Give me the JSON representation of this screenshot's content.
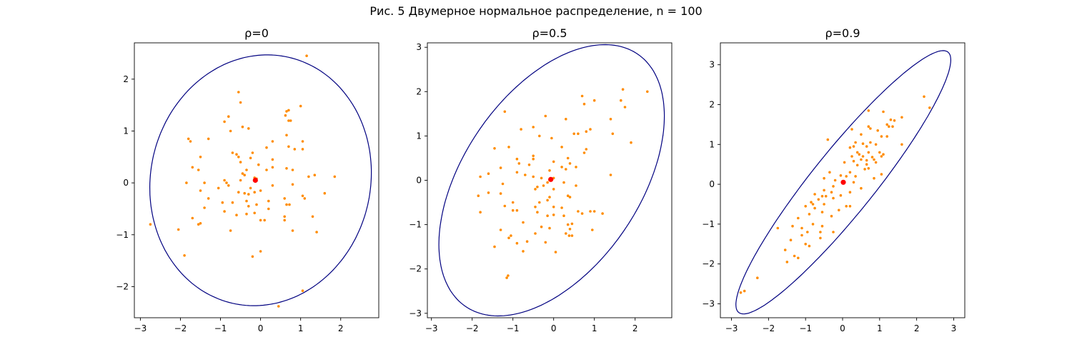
{
  "figure": {
    "suptitle": "Рис. 5 Двумерное нормальное распределение, n = 100"
  },
  "colors": {
    "points": "#ff8c00",
    "mean": "#ff0000",
    "ellipse": "#000080",
    "axes": "#000000"
  },
  "chart_data": [
    {
      "type": "scatter",
      "title": "ρ=0",
      "xlim": [
        -3.15,
        2.95
      ],
      "ylim": [
        -2.6,
        2.7
      ],
      "xticks": [
        -3,
        -2,
        -1,
        0,
        1,
        2
      ],
      "yticks": [
        -2,
        -1,
        0,
        1,
        2
      ],
      "xticklabels": [
        "−3",
        "−2",
        "−1",
        "0",
        "1",
        "2"
      ],
      "yticklabels": [
        "−2",
        "−1",
        "0",
        "1",
        "2"
      ],
      "mean": [
        -0.13,
        0.05
      ],
      "ellipse": {
        "cx": 0.0,
        "cy": 0.05,
        "rx": 2.78,
        "ry": 2.4,
        "angle": 12
      },
      "points": [
        [
          1.15,
          2.45
        ],
        [
          -0.55,
          1.75
        ],
        [
          -0.5,
          1.55
        ],
        [
          1.0,
          1.48
        ],
        [
          0.65,
          1.38
        ],
        [
          0.7,
          1.4
        ],
        [
          0.62,
          1.3
        ],
        [
          -0.8,
          1.28
        ],
        [
          0.7,
          1.2
        ],
        [
          0.75,
          1.2
        ],
        [
          -0.9,
          1.18
        ],
        [
          -0.45,
          1.08
        ],
        [
          -0.3,
          1.05
        ],
        [
          -0.75,
          1.0
        ],
        [
          0.65,
          0.92
        ],
        [
          -1.8,
          0.85
        ],
        [
          -1.75,
          0.8
        ],
        [
          -1.3,
          0.85
        ],
        [
          1.05,
          0.8
        ],
        [
          0.3,
          0.8
        ],
        [
          0.7,
          0.7
        ],
        [
          0.85,
          0.65
        ],
        [
          1.05,
          0.65
        ],
        [
          0.15,
          0.68
        ],
        [
          -0.7,
          0.58
        ],
        [
          -0.6,
          0.55
        ],
        [
          -0.2,
          0.58
        ],
        [
          -0.55,
          0.5
        ],
        [
          -0.5,
          0.4
        ],
        [
          -1.5,
          0.5
        ],
        [
          -0.25,
          0.48
        ],
        [
          0.3,
          0.45
        ],
        [
          -1.7,
          0.3
        ],
        [
          -1.55,
          0.25
        ],
        [
          -0.05,
          0.35
        ],
        [
          0.3,
          0.3
        ],
        [
          -0.35,
          0.25
        ],
        [
          0.65,
          0.28
        ],
        [
          0.8,
          0.25
        ],
        [
          0.15,
          0.25
        ],
        [
          -0.45,
          0.18
        ],
        [
          -0.4,
          0.15
        ],
        [
          1.35,
          0.15
        ],
        [
          1.2,
          0.12
        ],
        [
          1.85,
          0.12
        ],
        [
          -0.15,
          0.1
        ],
        [
          -0.1,
          0.08
        ],
        [
          -0.5,
          0.05
        ],
        [
          -0.9,
          0.05
        ],
        [
          -0.85,
          0.0
        ],
        [
          -1.85,
          0.0
        ],
        [
          -1.4,
          0.0
        ],
        [
          -0.8,
          -0.05
        ],
        [
          0.3,
          -0.05
        ],
        [
          0.8,
          -0.03
        ],
        [
          -0.25,
          -0.1
        ],
        [
          -1.05,
          -0.1
        ],
        [
          -1.5,
          -0.15
        ],
        [
          0.0,
          -0.15
        ],
        [
          -0.15,
          -0.18
        ],
        [
          -0.55,
          -0.18
        ],
        [
          -0.3,
          -0.22
        ],
        [
          1.6,
          -0.2
        ],
        [
          1.05,
          -0.25
        ],
        [
          1.1,
          -0.3
        ],
        [
          0.6,
          -0.3
        ],
        [
          -1.3,
          -0.3
        ],
        [
          -0.35,
          -0.35
        ],
        [
          0.2,
          -0.35
        ],
        [
          -0.7,
          -0.38
        ],
        [
          -0.95,
          -0.38
        ],
        [
          -0.1,
          -0.42
        ],
        [
          0.65,
          -0.42
        ],
        [
          0.72,
          -0.42
        ],
        [
          -0.3,
          -0.45
        ],
        [
          -1.4,
          -0.48
        ],
        [
          0.2,
          -0.5
        ],
        [
          -0.9,
          -0.55
        ],
        [
          -0.15,
          -0.58
        ],
        [
          -0.6,
          -0.62
        ],
        [
          -0.35,
          -0.6
        ],
        [
          0.6,
          -0.65
        ],
        [
          1.3,
          -0.65
        ],
        [
          -1.7,
          -0.68
        ],
        [
          0.0,
          -0.72
        ],
        [
          0.1,
          -0.72
        ],
        [
          0.6,
          -0.72
        ],
        [
          -1.5,
          -0.78
        ],
        [
          -1.55,
          -0.8
        ],
        [
          -2.75,
          -0.8
        ],
        [
          -0.75,
          -0.92
        ],
        [
          -2.05,
          -0.9
        ],
        [
          1.4,
          -0.95
        ],
        [
          0.8,
          -0.92
        ],
        [
          -0.2,
          -1.42
        ],
        [
          0.0,
          -1.32
        ],
        [
          -1.9,
          -1.4
        ],
        [
          1.05,
          -2.08
        ],
        [
          0.45,
          -2.38
        ],
        [
          -0.4,
          -0.2
        ]
      ]
    },
    {
      "type": "scatter",
      "title": "ρ=0.5",
      "xlim": [
        -3.1,
        2.9
      ],
      "ylim": [
        -3.1,
        3.1
      ],
      "xticks": [
        -3,
        -2,
        -1,
        0,
        1,
        2
      ],
      "yticks": [
        -3,
        -2,
        -1,
        0,
        1,
        2,
        3
      ],
      "xticklabels": [
        "−3",
        "−2",
        "−1",
        "0",
        "1",
        "2"
      ],
      "yticklabels": [
        "−3",
        "−2",
        "−1",
        "0",
        "1",
        "2",
        "3"
      ],
      "mean": [
        -0.07,
        0.02
      ],
      "ellipse": {
        "cx": -0.05,
        "cy": 0.0,
        "rx": 3.55,
        "ry": 2.1,
        "angle": 51
      },
      "points": [
        [
          2.3,
          2.0
        ],
        [
          1.7,
          2.05
        ],
        [
          1.75,
          1.65
        ],
        [
          0.7,
          1.9
        ],
        [
          1.0,
          1.8
        ],
        [
          1.65,
          1.8
        ],
        [
          0.75,
          1.72
        ],
        [
          -1.2,
          1.55
        ],
        [
          -0.2,
          1.45
        ],
        [
          0.3,
          1.38
        ],
        [
          1.4,
          1.38
        ],
        [
          -0.5,
          1.2
        ],
        [
          -0.8,
          1.15
        ],
        [
          0.9,
          1.15
        ],
        [
          0.8,
          1.1
        ],
        [
          0.5,
          1.05
        ],
        [
          0.6,
          1.05
        ],
        [
          1.45,
          1.05
        ],
        [
          -0.35,
          1.0
        ],
        [
          -0.05,
          0.95
        ],
        [
          1.9,
          0.85
        ],
        [
          -1.45,
          0.72
        ],
        [
          -1.1,
          0.75
        ],
        [
          0.2,
          0.75
        ],
        [
          0.8,
          0.7
        ],
        [
          0.75,
          0.62
        ],
        [
          -0.5,
          0.55
        ],
        [
          -0.9,
          0.48
        ],
        [
          -0.5,
          0.48
        ],
        [
          0.35,
          0.5
        ],
        [
          0.4,
          0.38
        ],
        [
          0.0,
          0.42
        ],
        [
          -0.85,
          0.38
        ],
        [
          -0.6,
          0.35
        ],
        [
          -1.3,
          0.28
        ],
        [
          -0.1,
          0.22
        ],
        [
          0.2,
          0.3
        ],
        [
          0.55,
          0.3
        ],
        [
          0.3,
          0.25
        ],
        [
          -0.9,
          0.18
        ],
        [
          -0.7,
          0.12
        ],
        [
          -1.6,
          0.15
        ],
        [
          -1.8,
          0.08
        ],
        [
          -0.5,
          0.08
        ],
        [
          0.0,
          0.05
        ],
        [
          -0.3,
          0.05
        ],
        [
          1.4,
          0.12
        ],
        [
          -0.1,
          0.0
        ],
        [
          -0.15,
          -0.05
        ],
        [
          0.25,
          -0.05
        ],
        [
          -1.25,
          -0.08
        ],
        [
          -0.4,
          -0.15
        ],
        [
          -0.45,
          -0.2
        ],
        [
          -0.25,
          -0.12
        ],
        [
          0.0,
          -0.2
        ],
        [
          0.55,
          -0.12
        ],
        [
          -1.6,
          -0.28
        ],
        [
          -1.3,
          -0.3
        ],
        [
          -1.85,
          -0.35
        ],
        [
          0.35,
          -0.35
        ],
        [
          0.4,
          -0.38
        ],
        [
          -0.1,
          -0.38
        ],
        [
          -0.15,
          -0.45
        ],
        [
          -0.35,
          -0.5
        ],
        [
          -1.0,
          -0.5
        ],
        [
          -1.2,
          -0.58
        ],
        [
          -0.45,
          -0.6
        ],
        [
          0.2,
          -0.62
        ],
        [
          0.0,
          -0.6
        ],
        [
          -0.9,
          -0.68
        ],
        [
          -1.0,
          -0.68
        ],
        [
          0.6,
          -0.7
        ],
        [
          0.9,
          -0.7
        ],
        [
          0.7,
          -0.75
        ],
        [
          1.0,
          -0.7
        ],
        [
          1.2,
          -0.75
        ],
        [
          -1.8,
          -0.72
        ],
        [
          -0.4,
          -0.72
        ],
        [
          0.0,
          -0.78
        ],
        [
          0.25,
          -0.8
        ],
        [
          -0.15,
          -0.8
        ],
        [
          -0.75,
          -0.95
        ],
        [
          0.45,
          -0.98
        ],
        [
          0.35,
          -1.0
        ],
        [
          -0.3,
          -1.05
        ],
        [
          -0.1,
          -1.08
        ],
        [
          0.4,
          -1.1
        ],
        [
          0.95,
          -1.12
        ],
        [
          -1.3,
          -1.12
        ],
        [
          0.3,
          -1.2
        ],
        [
          -0.45,
          -1.2
        ],
        [
          -1.05,
          -1.25
        ],
        [
          0.38,
          -1.25
        ],
        [
          0.45,
          -1.25
        ],
        [
          -1.1,
          -1.3
        ],
        [
          -0.65,
          -1.38
        ],
        [
          -0.9,
          -1.42
        ],
        [
          -0.2,
          -1.4
        ],
        [
          -1.45,
          -1.5
        ],
        [
          -0.75,
          -1.6
        ],
        [
          0.05,
          -1.62
        ],
        [
          -1.15,
          -2.2
        ],
        [
          -1.12,
          -2.15
        ]
      ]
    },
    {
      "type": "scatter",
      "title": "ρ=0.9",
      "xlim": [
        -3.3,
        3.3
      ],
      "ylim": [
        -3.35,
        3.55
      ],
      "xticks": [
        -3,
        -2,
        -1,
        0,
        1,
        2,
        3
      ],
      "yticks": [
        -3,
        -2,
        -1,
        0,
        1,
        2,
        3
      ],
      "xticklabels": [
        "−3",
        "−2",
        "−1",
        "0",
        "1",
        "2",
        "3"
      ],
      "yticklabels": [
        "−3",
        "−2",
        "−1",
        "0",
        "1",
        "2",
        "3"
      ],
      "mean": [
        0.02,
        0.05
      ],
      "ellipse": {
        "cx": 0.02,
        "cy": 0.05,
        "rx": 4.32,
        "ry": 0.82,
        "angle": 49
      },
      "points": [
        [
          2.2,
          2.2
        ],
        [
          2.35,
          1.92
        ],
        [
          0.7,
          1.85
        ],
        [
          1.1,
          1.82
        ],
        [
          1.6,
          1.68
        ],
        [
          1.3,
          1.62
        ],
        [
          1.4,
          1.6
        ],
        [
          1.2,
          1.5
        ],
        [
          1.25,
          1.45
        ],
        [
          1.35,
          1.45
        ],
        [
          0.7,
          1.45
        ],
        [
          0.75,
          1.4
        ],
        [
          0.25,
          1.38
        ],
        [
          0.95,
          1.35
        ],
        [
          1.05,
          1.2
        ],
        [
          1.2,
          1.2
        ],
        [
          0.5,
          1.25
        ],
        [
          0.75,
          1.05
        ],
        [
          0.9,
          1.0
        ],
        [
          1.6,
          1.0
        ],
        [
          0.35,
          1.05
        ],
        [
          0.55,
          1.02
        ],
        [
          -0.4,
          1.12
        ],
        [
          0.65,
          0.95
        ],
        [
          0.3,
          0.95
        ],
        [
          0.2,
          0.92
        ],
        [
          1.0,
          0.8
        ],
        [
          1.1,
          0.75
        ],
        [
          0.4,
          0.8
        ],
        [
          0.7,
          0.8
        ],
        [
          0.45,
          0.75
        ],
        [
          1.05,
          0.7
        ],
        [
          0.8,
          0.68
        ],
        [
          0.55,
          0.7
        ],
        [
          0.25,
          0.7
        ],
        [
          0.5,
          0.62
        ],
        [
          0.65,
          0.6
        ],
        [
          0.85,
          0.62
        ],
        [
          0.3,
          0.58
        ],
        [
          0.05,
          0.55
        ],
        [
          0.65,
          0.5
        ],
        [
          0.4,
          0.48
        ],
        [
          0.7,
          0.4
        ],
        [
          0.6,
          0.38
        ],
        [
          -0.35,
          0.3
        ],
        [
          0.2,
          0.3
        ],
        [
          1.05,
          0.25
        ],
        [
          0.1,
          0.2
        ],
        [
          -0.05,
          0.22
        ],
        [
          0.85,
          0.15
        ],
        [
          -0.5,
          0.15
        ],
        [
          -0.2,
          0.1
        ],
        [
          0.3,
          0.05
        ],
        [
          0.0,
          0.05
        ],
        [
          -0.25,
          -0.05
        ],
        [
          0.5,
          -0.1
        ],
        [
          -0.5,
          -0.15
        ],
        [
          -0.3,
          -0.2
        ],
        [
          0.2,
          -0.2
        ],
        [
          -0.05,
          -0.28
        ],
        [
          -0.75,
          -0.25
        ],
        [
          -0.55,
          -0.3
        ],
        [
          -0.45,
          -0.3
        ],
        [
          -0.65,
          -0.38
        ],
        [
          -0.25,
          -0.35
        ],
        [
          -0.85,
          -0.45
        ],
        [
          -0.5,
          -0.5
        ],
        [
          -0.8,
          -0.5
        ],
        [
          -0.75,
          -0.6
        ],
        [
          0.1,
          -0.55
        ],
        [
          0.2,
          -0.55
        ],
        [
          -1.0,
          -0.55
        ],
        [
          -0.1,
          -0.65
        ],
        [
          -0.55,
          -0.7
        ],
        [
          -0.9,
          -0.75
        ],
        [
          -0.3,
          -0.8
        ],
        [
          -1.2,
          -0.85
        ],
        [
          -0.8,
          -1.0
        ],
        [
          -0.55,
          -1.05
        ],
        [
          -1.35,
          -1.05
        ],
        [
          -1.75,
          -1.1
        ],
        [
          -0.25,
          -1.2
        ],
        [
          -0.95,
          -1.2
        ],
        [
          -0.6,
          -1.2
        ],
        [
          -1.1,
          -1.28
        ],
        [
          -0.6,
          -1.35
        ],
        [
          -1.4,
          -1.4
        ],
        [
          -1.0,
          -1.5
        ],
        [
          -0.9,
          -1.55
        ],
        [
          -1.3,
          -1.8
        ],
        [
          -1.2,
          -1.85
        ],
        [
          -1.55,
          -1.65
        ],
        [
          -1.5,
          -1.95
        ],
        [
          -2.3,
          -2.35
        ],
        [
          -2.75,
          -2.72
        ],
        [
          -2.65,
          -2.68
        ],
        [
          -1.1,
          -1.1
        ],
        [
          0.35,
          0.2
        ],
        [
          0.9,
          0.55
        ]
      ]
    }
  ]
}
